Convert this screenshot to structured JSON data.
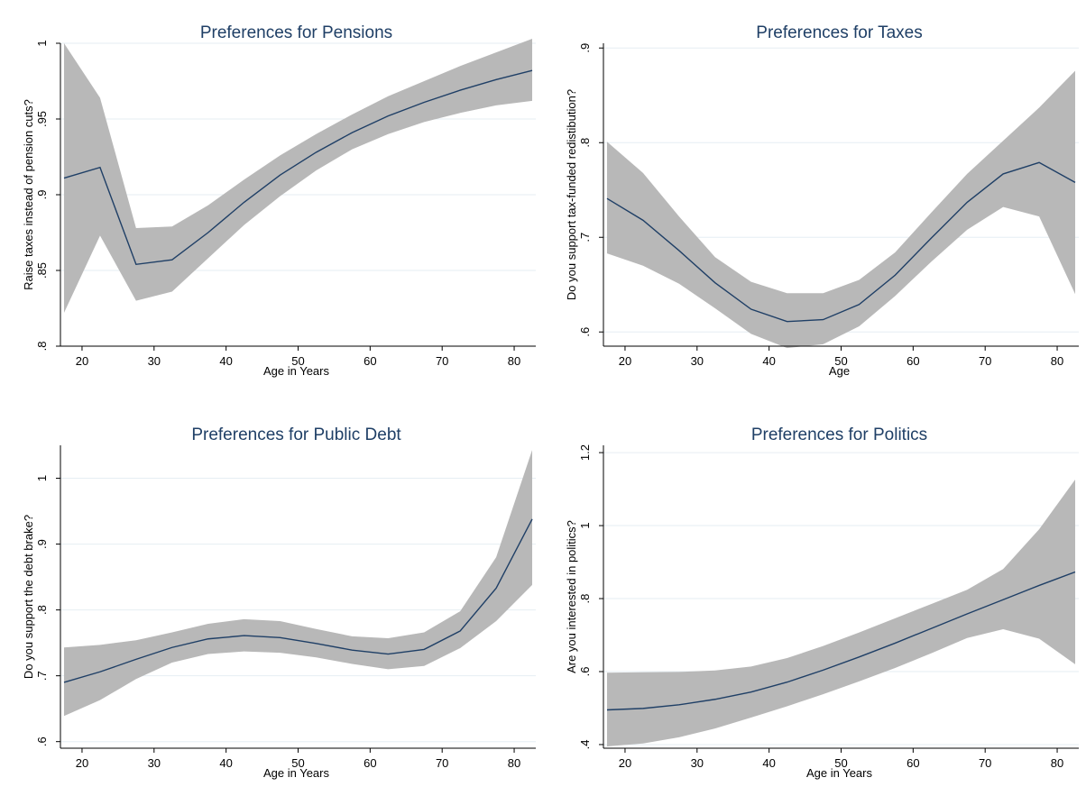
{
  "chart_data": [
    {
      "type": "line",
      "title": "Preferences for Pensions",
      "xlabel": "Age in Years",
      "ylabel": "Raise taxes instead of pension cuts?",
      "xlim": [
        17,
        83
      ],
      "ylim": [
        0.8,
        1.0
      ],
      "xticks": [
        20,
        30,
        40,
        50,
        60,
        70,
        80
      ],
      "yticks": [
        0.8,
        0.85,
        0.9,
        0.95,
        1.0
      ],
      "ytick_labels": [
        ".8",
        ".85",
        ".9",
        ".95",
        "1"
      ],
      "grid": true,
      "x": [
        17.5,
        22.5,
        27.5,
        32.5,
        37.5,
        42.5,
        47.5,
        52.5,
        57.5,
        62.5,
        67.5,
        72.5,
        77.5,
        82.5
      ],
      "y": [
        0.911,
        0.918,
        0.854,
        0.857,
        0.875,
        0.895,
        0.913,
        0.928,
        0.941,
        0.952,
        0.961,
        0.969,
        0.976,
        0.982
      ],
      "lower": [
        0.822,
        0.873,
        0.83,
        0.836,
        0.858,
        0.88,
        0.899,
        0.916,
        0.93,
        0.94,
        0.948,
        0.954,
        0.959,
        0.962
      ],
      "upper": [
        1.0,
        0.964,
        0.878,
        0.879,
        0.893,
        0.91,
        0.926,
        0.94,
        0.953,
        0.965,
        0.975,
        0.985,
        0.994,
        1.003
      ]
    },
    {
      "type": "line",
      "title": "Preferences for Taxes",
      "xlabel": "Age",
      "ylabel": "Do you support tax-funded redistibution?",
      "xlim": [
        17,
        83
      ],
      "ylim": [
        0.585,
        0.905
      ],
      "xticks": [
        20,
        30,
        40,
        50,
        60,
        70,
        80
      ],
      "yticks": [
        0.6,
        0.7,
        0.8,
        0.9
      ],
      "ytick_labels": [
        ".6",
        ".7",
        ".8",
        ".9"
      ],
      "grid": true,
      "x": [
        17.5,
        22.5,
        27.5,
        32.5,
        37.5,
        42.5,
        47.5,
        52.5,
        57.5,
        62.5,
        67.5,
        72.5,
        77.5,
        82.5
      ],
      "y": [
        0.741,
        0.718,
        0.686,
        0.652,
        0.624,
        0.611,
        0.613,
        0.629,
        0.66,
        0.699,
        0.737,
        0.767,
        0.779,
        0.758
      ],
      "lower": [
        0.683,
        0.67,
        0.651,
        0.625,
        0.598,
        0.583,
        0.587,
        0.606,
        0.638,
        0.674,
        0.708,
        0.732,
        0.722,
        0.64
      ],
      "upper": [
        0.801,
        0.768,
        0.722,
        0.679,
        0.653,
        0.641,
        0.641,
        0.655,
        0.684,
        0.726,
        0.767,
        0.802,
        0.837,
        0.876
      ]
    },
    {
      "type": "line",
      "title": "Preferences for Public Debt",
      "xlabel": "Age in Years",
      "ylabel": "Do you support the debt brake?",
      "xlim": [
        17,
        83
      ],
      "ylim": [
        0.59,
        1.05
      ],
      "xticks": [
        20,
        30,
        40,
        50,
        60,
        70,
        80
      ],
      "yticks": [
        0.6,
        0.7,
        0.8,
        0.9,
        1.0
      ],
      "ytick_labels": [
        ".6",
        ".7",
        ".8",
        ".9",
        "1"
      ],
      "grid": true,
      "x": [
        17.5,
        22.5,
        27.5,
        32.5,
        37.5,
        42.5,
        47.5,
        52.5,
        57.5,
        62.5,
        67.5,
        72.5,
        77.5,
        82.5
      ],
      "y": [
        0.69,
        0.706,
        0.725,
        0.743,
        0.756,
        0.761,
        0.758,
        0.749,
        0.739,
        0.733,
        0.74,
        0.768,
        0.833,
        0.938
      ],
      "lower": [
        0.639,
        0.663,
        0.695,
        0.72,
        0.733,
        0.737,
        0.735,
        0.728,
        0.718,
        0.71,
        0.715,
        0.742,
        0.783,
        0.838
      ],
      "upper": [
        0.743,
        0.747,
        0.754,
        0.766,
        0.779,
        0.786,
        0.783,
        0.771,
        0.76,
        0.757,
        0.766,
        0.798,
        0.88,
        1.043
      ]
    },
    {
      "type": "line",
      "title": "Preferences for Politics",
      "xlabel": "Age in Years",
      "ylabel": "Are you interested in politics?",
      "xlim": [
        17,
        83
      ],
      "ylim": [
        0.39,
        1.22
      ],
      "xticks": [
        20,
        30,
        40,
        50,
        60,
        70,
        80
      ],
      "yticks": [
        0.4,
        0.6,
        0.8,
        1.0,
        1.2
      ],
      "ytick_labels": [
        ".4",
        ".6",
        ".8",
        "1",
        "1.2"
      ],
      "grid": true,
      "x": [
        17.5,
        22.5,
        27.5,
        32.5,
        37.5,
        42.5,
        47.5,
        52.5,
        57.5,
        62.5,
        67.5,
        72.5,
        77.5,
        82.5
      ],
      "y": [
        0.495,
        0.499,
        0.509,
        0.524,
        0.544,
        0.571,
        0.604,
        0.64,
        0.678,
        0.718,
        0.758,
        0.797,
        0.836,
        0.873
      ],
      "lower": [
        0.395,
        0.403,
        0.42,
        0.444,
        0.474,
        0.505,
        0.538,
        0.573,
        0.61,
        0.65,
        0.692,
        0.716,
        0.69,
        0.62
      ],
      "upper": [
        0.597,
        0.598,
        0.599,
        0.603,
        0.614,
        0.637,
        0.67,
        0.707,
        0.746,
        0.785,
        0.824,
        0.881,
        0.99,
        1.126
      ]
    }
  ]
}
